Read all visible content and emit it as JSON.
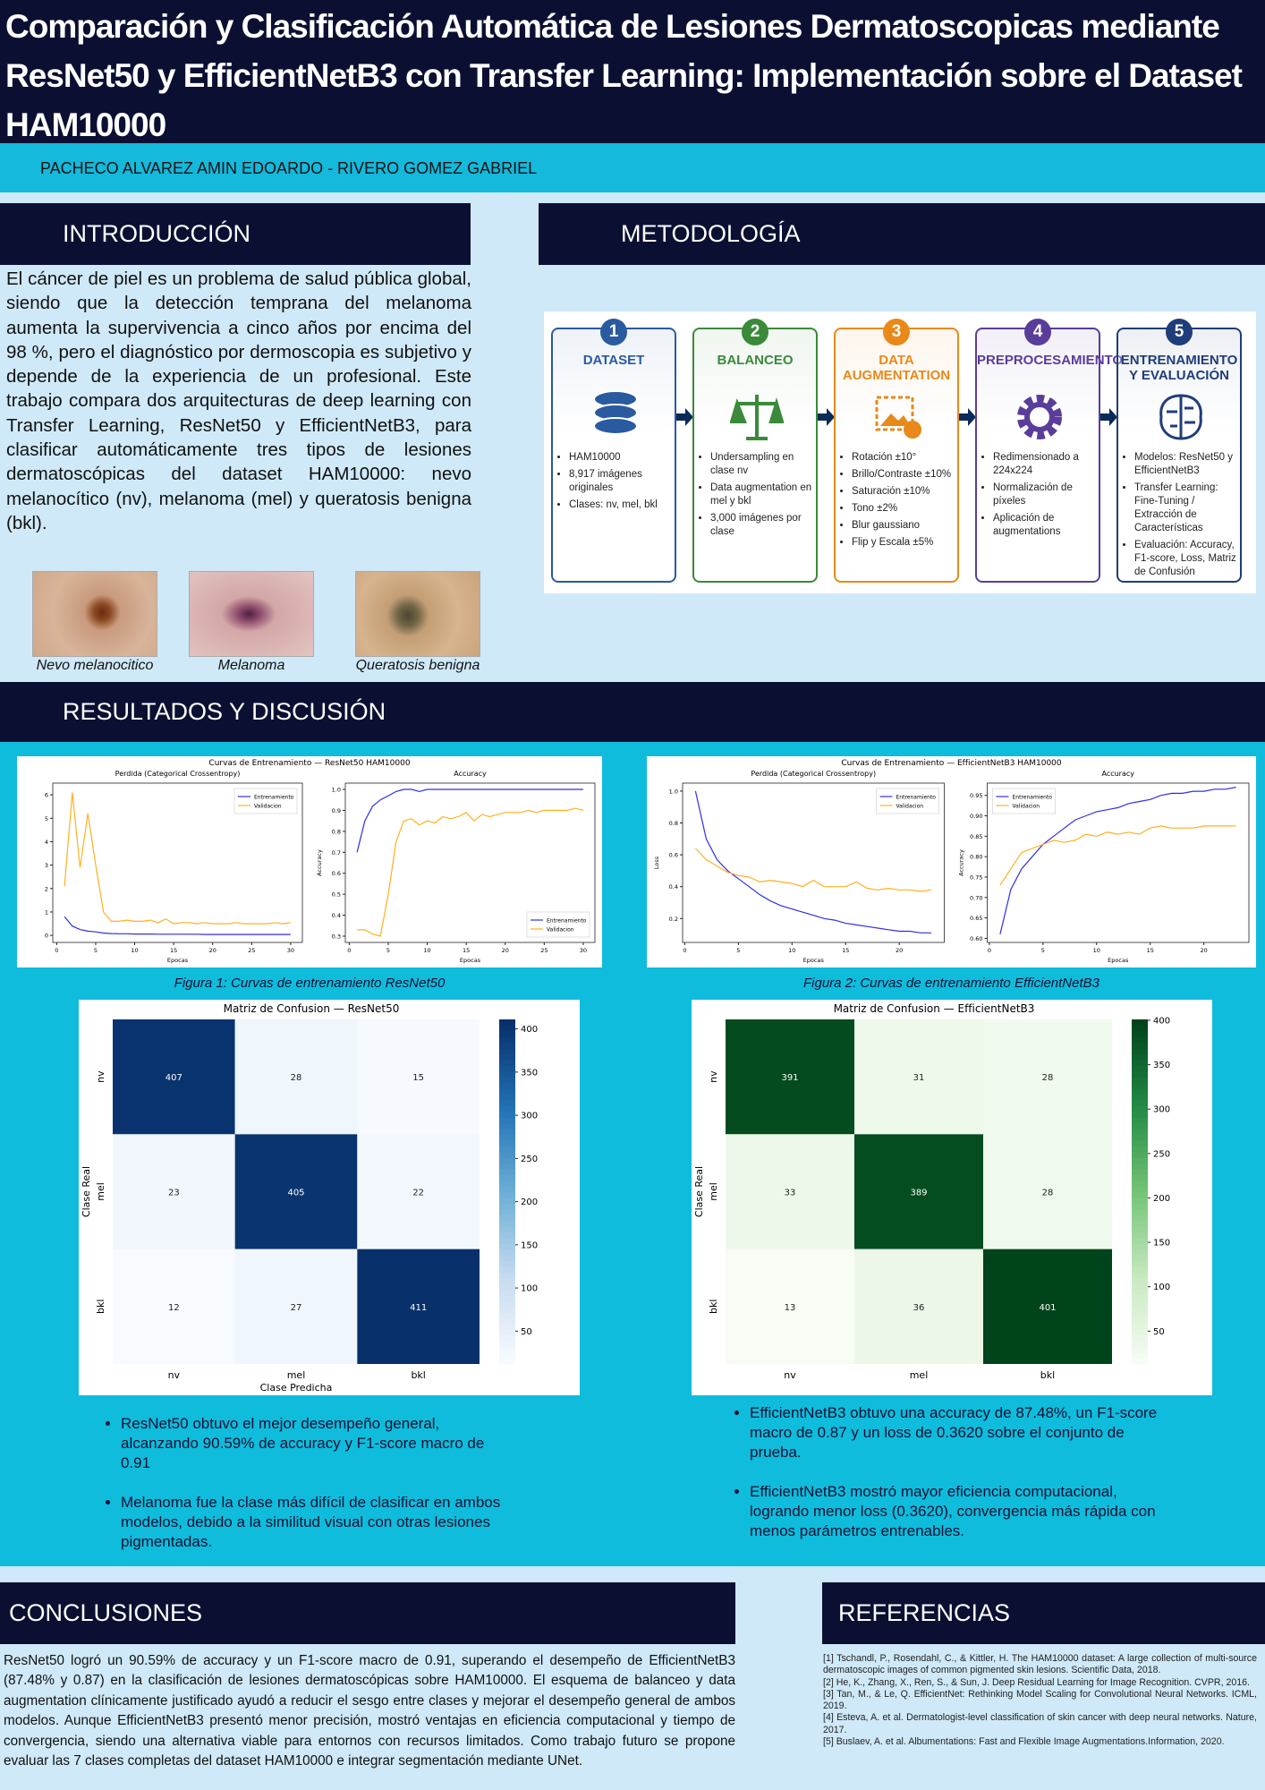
{
  "header": {
    "title": "Comparación  y Clasificación  Automática  de  Lesiones Dermatoscopicas  mediante  ResNet50 y EfficientNetB3 con Transfer Learning: Implementación  sobre el Dataset HAM10000",
    "authors": "PACHECO ALVAREZ AMIN EDOARDO - RIVERO GOMEZ GABRIEL"
  },
  "introduction": {
    "heading": "INTRODUCCIÓN",
    "text": "El cáncer de piel es un problema de salud pública global, siendo que la detección temprana del melanoma aumenta la supervivencia a cinco años por encima del 98 %, pero el diagnóstico por dermoscopia es subjetivo y depende de la experiencia de un profesional. Este trabajo compara dos arquitecturas de deep learning con Transfer Learning, ResNet50 y EfficientNetB3, para clasificar automáticamente tres tipos de lesiones dermatoscópicas del dataset HAM10000: nevo melanocítico (nv), melanoma (mel) y queratosis benigna (bkl).",
    "images": [
      "Nevo melanocitico",
      "Melanoma",
      "Queratosis benigna"
    ]
  },
  "methodology": {
    "heading": "METODOLOGÍA",
    "steps": [
      {
        "number": 1,
        "title": "DATASET",
        "color": "#2a5aa0",
        "items": [
          "HAM10000",
          "8,917 imágenes originales",
          "Clases: nv, mel, bkl"
        ]
      },
      {
        "number": 2,
        "title": "BALANCEO",
        "color": "#3a8a3a",
        "items": [
          "Undersampling en clase nv",
          "Data augmentation en mel y bkl",
          "3,000 imágenes por clase"
        ]
      },
      {
        "number": 3,
        "title": "DATA AUGMENTATION",
        "color": "#e8891a",
        "items": [
          "Rotación ±10°",
          "Brillo/Contraste ±10%",
          "Saturación ±10%",
          "Tono ±2%",
          "Blur gaussiano",
          "Flip y Escala ±5%"
        ]
      },
      {
        "number": 4,
        "title": "PREPROCESAMIENTO",
        "color": "#5a3d9a",
        "items": [
          "Redimensionado a 224x224",
          "Normalización de píxeles",
          "Aplicación de augmentations"
        ]
      },
      {
        "number": 5,
        "title": "ENTRENAMIENTO Y EVALUACIÓN",
        "color": "#1f3d7a",
        "items": [
          "Modelos: ResNet50 y EfficientNetB3",
          "Transfer Learning: Fine-Tuning / Extracción de Características",
          "Evaluación: Accuracy, F1-score, Loss, Matriz de Confusión"
        ]
      }
    ]
  },
  "results": {
    "heading": "RESULTADOS Y DISCUSIÓN",
    "curves": [
      {
        "title": "Curvas de Entrenamiento — ResNet50 HAM10000",
        "caption": "Figura  1: Curvas  de entrenamiento ResNet50",
        "x": [
          1,
          2,
          3,
          4,
          5,
          6,
          7,
          8,
          9,
          10,
          11,
          12,
          13,
          14,
          15,
          16,
          17,
          18,
          19,
          20,
          21,
          22,
          23,
          24,
          25,
          26,
          27,
          28,
          29,
          30
        ],
        "panels": [
          {
            "title": "Perdida (Categorical Crossentropy)",
            "xlabel": "Epocas",
            "legend": "upper right",
            "xlim": [
              -0.5,
              31.5
            ],
            "xticks": [
              0,
              5,
              10,
              15,
              20,
              25,
              30
            ],
            "ylim": [
              -0.3,
              6.5
            ],
            "yticks": [
              0,
              1,
              2,
              3,
              4,
              5,
              6
            ],
            "series": [
              {
                "name": "Entrenamiento",
                "color": "#2f2fe8",
                "values": [
                  0.8,
                  0.4,
                  0.25,
                  0.18,
                  0.15,
                  0.1,
                  0.08,
                  0.07,
                  0.07,
                  0.06,
                  0.06,
                  0.06,
                  0.05,
                  0.05,
                  0.05,
                  0.05,
                  0.05,
                  0.05,
                  0.04,
                  0.04,
                  0.04,
                  0.04,
                  0.04,
                  0.04,
                  0.04,
                  0.04,
                  0.04,
                  0.04,
                  0.04,
                  0.04
                ]
              },
              {
                "name": "Validacion",
                "color": "#ffb020",
                "values": [
                  2.1,
                  6.1,
                  2.9,
                  5.2,
                  3.0,
                  1.0,
                  0.6,
                  0.6,
                  0.65,
                  0.6,
                  0.6,
                  0.65,
                  0.55,
                  0.7,
                  0.5,
                  0.55,
                  0.55,
                  0.5,
                  0.55,
                  0.5,
                  0.5,
                  0.5,
                  0.55,
                  0.5,
                  0.5,
                  0.5,
                  0.5,
                  0.55,
                  0.5,
                  0.55
                ]
              }
            ]
          },
          {
            "title": "Accuracy",
            "xlabel": "Epocas",
            "ylabel": "Accuracy",
            "legend": "lower right",
            "xlim": [
              -0.5,
              31.5
            ],
            "xticks": [
              0,
              5,
              10,
              15,
              20,
              25,
              30
            ],
            "ylim": [
              0.27,
              1.03
            ],
            "yticks": [
              0.3,
              0.4,
              0.5,
              0.6,
              0.7,
              0.8,
              0.9,
              {
                "value": 1,
                "label": "1.0"
              }
            ],
            "series": [
              {
                "name": "Entrenamiento",
                "color": "#2f2fe8",
                "values": [
                  0.7,
                  0.85,
                  0.92,
                  0.95,
                  0.97,
                  0.99,
                  1.0,
                  1.0,
                  0.99,
                  1.0,
                  1.0,
                  1.0,
                  1.0,
                  1.0,
                  1.0,
                  1.0,
                  1.0,
                  1.0,
                  1.0,
                  1.0,
                  1.0,
                  1.0,
                  1.0,
                  1.0,
                  1.0,
                  1.0,
                  1.0,
                  1.0,
                  1.0,
                  1.0
                ]
              },
              {
                "name": "Validacion",
                "color": "#ffb020",
                "values": [
                  0.33,
                  0.33,
                  0.31,
                  0.3,
                  0.5,
                  0.75,
                  0.85,
                  0.86,
                  0.83,
                  0.85,
                  0.84,
                  0.87,
                  0.86,
                  0.87,
                  0.89,
                  0.85,
                  0.88,
                  0.87,
                  0.88,
                  0.89,
                  0.89,
                  0.89,
                  0.9,
                  0.89,
                  0.9,
                  0.9,
                  0.9,
                  0.9,
                  0.91,
                  0.9
                ]
              }
            ]
          }
        ]
      },
      {
        "title": "Curvas de Entrenamiento — EfficientNetB3 HAM10000",
        "caption": "Figura  2: Curvas  de entrenamiento EfficientNetB3",
        "x": [
          1,
          2,
          3,
          4,
          5,
          6,
          7,
          8,
          9,
          10,
          11,
          12,
          13,
          14,
          15,
          16,
          17,
          18,
          19,
          20,
          21,
          22,
          23
        ],
        "panels": [
          {
            "title": "Perdida (Categorical Crossentropy)",
            "xlabel": "Epocas",
            "ylabel": "Loss",
            "legend": "upper right",
            "xlim": [
              -0.2,
              24.2
            ],
            "xticks": [
              0,
              5,
              10,
              15,
              20
            ],
            "ylim": [
              0.05,
              1.05
            ],
            "yticks": [
              0.2,
              0.4,
              0.6,
              0.8,
              {
                "value": 1,
                "label": "1.0"
              }
            ],
            "series": [
              {
                "name": "Entrenamiento",
                "color": "#2f2fe8",
                "values": [
                  1.0,
                  0.7,
                  0.57,
                  0.5,
                  0.45,
                  0.4,
                  0.35,
                  0.31,
                  0.28,
                  0.26,
                  0.24,
                  0.22,
                  0.2,
                  0.19,
                  0.17,
                  0.16,
                  0.15,
                  0.14,
                  0.13,
                  0.12,
                  0.12,
                  0.11,
                  0.11
                ]
              },
              {
                "name": "Validacion",
                "color": "#ffb020",
                "values": [
                  0.64,
                  0.57,
                  0.53,
                  0.49,
                  0.47,
                  0.46,
                  0.43,
                  0.44,
                  0.43,
                  0.42,
                  0.4,
                  0.44,
                  0.4,
                  0.4,
                  0.4,
                  0.43,
                  0.39,
                  0.38,
                  0.39,
                  0.38,
                  0.38,
                  0.37,
                  0.38
                ]
              }
            ]
          },
          {
            "title": "Accuracy",
            "xlabel": "Epocas",
            "ylabel": "Accuracy",
            "legend": "upper left",
            "xlim": [
              -0.2,
              24.2
            ],
            "xticks": [
              0,
              5,
              10,
              15,
              20
            ],
            "ylim": [
              0.59,
              0.98
            ],
            "yticks": [
              {
                "value": 0.6,
                "label": "0.60"
              },
              0.65,
              {
                "value": 0.7,
                "label": "0.70"
              },
              0.75,
              {
                "value": 0.8,
                "label": "0.80"
              },
              0.85,
              {
                "value": 0.9,
                "label": "0.90"
              },
              0.95
            ],
            "series": [
              {
                "name": "Entrenamiento",
                "color": "#2f2fe8",
                "values": [
                  0.61,
                  0.72,
                  0.77,
                  0.8,
                  0.83,
                  0.85,
                  0.87,
                  0.89,
                  0.9,
                  0.91,
                  0.915,
                  0.92,
                  0.93,
                  0.935,
                  0.94,
                  0.95,
                  0.955,
                  0.955,
                  0.96,
                  0.96,
                  0.965,
                  0.965,
                  0.97
                ]
              },
              {
                "name": "Validacion",
                "color": "#ffb020",
                "values": [
                  0.73,
                  0.77,
                  0.81,
                  0.82,
                  0.83,
                  0.84,
                  0.835,
                  0.84,
                  0.855,
                  0.85,
                  0.86,
                  0.855,
                  0.86,
                  0.855,
                  0.87,
                  0.875,
                  0.87,
                  0.87,
                  0.87,
                  0.875,
                  0.875,
                  0.875,
                  0.875
                ]
              }
            ]
          }
        ]
      }
    ],
    "matrices": [
      {
        "title": "Matriz de Confusion — ResNet50",
        "xlabel": "Clase Predicha",
        "ylabel": "Clase Real",
        "labels": [
          "nv",
          "mel",
          "bkl"
        ],
        "matrix": [
          [
            407,
            28,
            15
          ],
          [
            23,
            405,
            22
          ],
          [
            12,
            27,
            411
          ]
        ],
        "vlim": [
          12,
          411
        ],
        "ticks": [
          50,
          100,
          150,
          200,
          250,
          300,
          350,
          400
        ],
        "colors": [
          "#f7fbff",
          "#c6dbef",
          "#6baed6",
          "#2171b5",
          "#08306b"
        ]
      },
      {
        "title": "Matriz de Confusion — EfficientNetB3",
        "ylabel": "Clase Real",
        "labels": [
          "nv",
          "mel",
          "bkl"
        ],
        "matrix": [
          [
            391,
            31,
            28
          ],
          [
            33,
            389,
            28
          ],
          [
            13,
            36,
            401
          ]
        ],
        "vlim": [
          13,
          401
        ],
        "ticks": [
          50,
          100,
          150,
          200,
          250,
          300,
          350,
          400
        ],
        "colors": [
          "#f7fcf5",
          "#c7e9c0",
          "#74c476",
          "#238b45",
          "#00441b"
        ]
      }
    ],
    "bullets_left": [
      "ResNet50 obtuvo el mejor desempeño general, alcanzando 90.59% de accuracy y F1-score macro de 0.91",
      "Melanoma fue la clase más difícil de clasificar en ambos modelos, debido a la similitud visual con otras lesiones pigmentadas."
    ],
    "bullets_right": [
      "EfficientNetB3 obtuvo una accuracy de 87.48%, un F1-score macro de 0.87 y un loss de 0.3620 sobre el conjunto de prueba.",
      "EfficientNetB3 mostró mayor eficiencia computacional, logrando menor loss (0.3620), convergencia más rápida con menos parámetros entrenables."
    ]
  },
  "conclusions": {
    "heading": "CONCLUSIONES",
    "text": "ResNet50 logró un 90.59% de accuracy y un F1-score macro de 0.91, superando el desempeño de EfficientNetB3 (87.48% y 0.87) en la clasificación de lesiones dermatoscópicas sobre HAM10000. El esquema de balanceo y data augmentation clínicamente justificado ayudó a reducir el sesgo entre clases y mejorar el desempeño general de ambos modelos. Aunque EfficientNetB3 presentó menor precisión, mostró ventajas en eficiencia computacional y tiempo de convergencia, siendo una alternativa viable para entornos con recursos limitados. Como trabajo futuro se propone evaluar las 7 clases completas del dataset HAM10000 e integrar segmentación mediante UNet."
  },
  "references": {
    "heading": "REFERENCIAS",
    "items": [
      "[1] Tschandl, P., Rosendahl, C., & Kittler, H. The HAM10000 dataset: A large collection of multi-source dermatoscopic images of common pigmented skin lesions. Scientific Data, 2018.",
      "[2] He, K., Zhang, X., Ren, S., & Sun, J. Deep Residual Learning for Image Recognition. CVPR, 2016.",
      "[3] Tan, M., & Le, Q. EfficientNet: Rethinking Model Scaling for Convolutional Neural Networks. ICML, 2019.",
      "[4] Esteva, A. et al. Dermatologist-level classification of skin cancer with deep neural networks. Nature, 2017.",
      "[5] Buslaev, A. et al. Albumentations: Fast and Flexible Image Augmentations.Information, 2020."
    ]
  }
}
